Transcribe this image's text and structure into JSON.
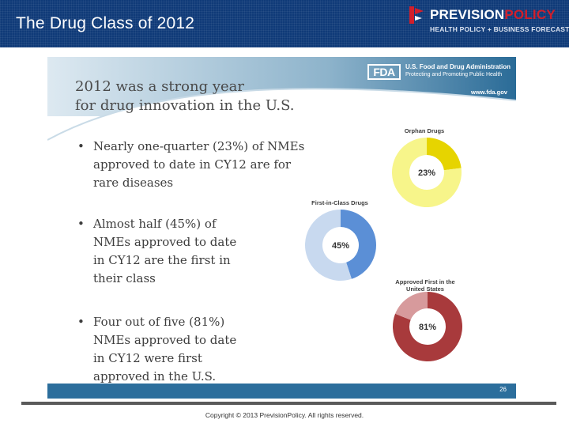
{
  "header": {
    "title": "The Drug Class of 2012",
    "logo": {
      "name_part1": "PREVISION",
      "name_part2": "POLICY",
      "tagline": "HEALTH POLICY + BUSINESS FORECASTS"
    }
  },
  "slide": {
    "fda": {
      "badge": "FDA",
      "name": "U.S. Food and Drug Administration",
      "subtitle": "Protecting and Promoting Public Health",
      "url": "www.fda.gov"
    },
    "heading_line1": "2012 was a strong year",
    "heading_line2": "for drug innovation in the U.S.",
    "bullets": [
      {
        "marker": "•",
        "lines": [
          "Nearly one-quarter (23%) of NMEs",
          "approved to date in CY12 are for",
          "rare diseases"
        ]
      },
      {
        "marker": "•",
        "lines": [
          "Almost half (45%) of",
          "NMEs approved to date",
          "in CY12 are the first in",
          "their class"
        ]
      },
      {
        "marker": "•",
        "lines": [
          "Four out of five  (81%)",
          "NMEs approved to date",
          "in CY12 were first",
          "approved in the U.S."
        ]
      }
    ],
    "page_number": "26"
  },
  "chart_data": [
    {
      "type": "pie",
      "title": "Orphan Drugs",
      "categories": [
        "Orphan drugs",
        "Other"
      ],
      "values": [
        23,
        77
      ],
      "label": "23%",
      "colors": [
        "#e6d400",
        "#f7f58a"
      ]
    },
    {
      "type": "pie",
      "title": "First-in-Class Drugs",
      "categories": [
        "First-in-class",
        "Other"
      ],
      "values": [
        45,
        55
      ],
      "label": "45%",
      "colors": [
        "#5b8fd6",
        "#c8d9ef"
      ]
    },
    {
      "type": "pie",
      "title_line1": "Approved First in the",
      "title_line2": "United States",
      "categories": [
        "Approved first in U.S.",
        "Other"
      ],
      "values": [
        81,
        19
      ],
      "label": "81%",
      "colors": [
        "#a83a3c",
        "#d79a9c"
      ]
    }
  ],
  "footer": {
    "copyright": "Copyright © 2013 PrevisionPolicy. All rights reserved."
  }
}
